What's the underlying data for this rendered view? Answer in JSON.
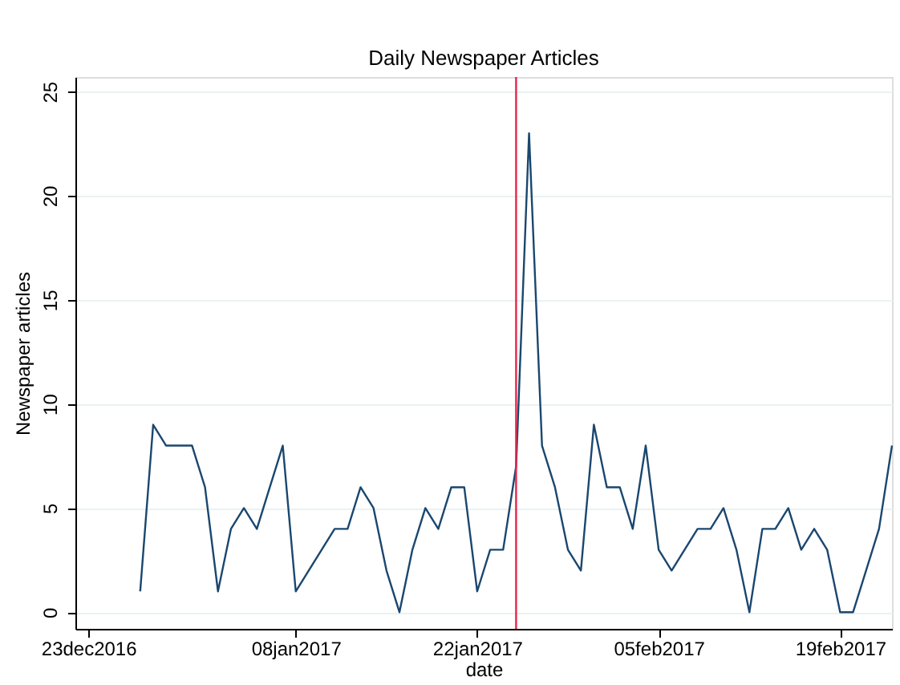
{
  "chart_data": {
    "type": "line",
    "title": "Daily Newspaper Articles",
    "xlabel": "date",
    "ylabel": "Newspaper articles",
    "x": [
      "2016-12-27",
      "2016-12-28",
      "2016-12-29",
      "2016-12-30",
      "2016-12-31",
      "2017-01-01",
      "2017-01-02",
      "2017-01-03",
      "2017-01-04",
      "2017-01-05",
      "2017-01-06",
      "2017-01-07",
      "2017-01-08",
      "2017-01-09",
      "2017-01-10",
      "2017-01-11",
      "2017-01-12",
      "2017-01-13",
      "2017-01-14",
      "2017-01-15",
      "2017-01-16",
      "2017-01-17",
      "2017-01-18",
      "2017-01-19",
      "2017-01-20",
      "2017-01-21",
      "2017-01-22",
      "2017-01-23",
      "2017-01-24",
      "2017-01-25",
      "2017-01-26",
      "2017-01-27",
      "2017-01-28",
      "2017-01-29",
      "2017-01-30",
      "2017-01-31",
      "2017-02-01",
      "2017-02-02",
      "2017-02-03",
      "2017-02-04",
      "2017-02-05",
      "2017-02-06",
      "2017-02-07",
      "2017-02-08",
      "2017-02-09",
      "2017-02-10",
      "2017-02-11",
      "2017-02-12",
      "2017-02-13",
      "2017-02-14",
      "2017-02-15",
      "2017-02-16",
      "2017-02-17",
      "2017-02-18",
      "2017-02-19",
      "2017-02-20",
      "2017-02-21",
      "2017-02-22",
      "2017-02-23"
    ],
    "series": [
      {
        "color": "#1a476f",
        "values": [
          1,
          9,
          8,
          8,
          8,
          6,
          1,
          4,
          5,
          4,
          6,
          8,
          1,
          2,
          3,
          4,
          4,
          6,
          5,
          2,
          0,
          3,
          5,
          4,
          6,
          6,
          1,
          3,
          3,
          7,
          23,
          8,
          6,
          3,
          2,
          9,
          6,
          6,
          4,
          8,
          3,
          2,
          3,
          4,
          4,
          5,
          3,
          0,
          4,
          4,
          5,
          3,
          4,
          3,
          0,
          0,
          2,
          4,
          8
        ]
      }
    ],
    "xlim": [
      "2016-12-22",
      "2017-02-23"
    ],
    "xticks": [
      {
        "value": "2016-12-23",
        "label": "23dec2016"
      },
      {
        "value": "2017-01-08",
        "label": "08jan2017"
      },
      {
        "value": "2017-01-22",
        "label": "22jan2017"
      },
      {
        "value": "2017-02-05",
        "label": "05feb2017"
      },
      {
        "value": "2017-02-19",
        "label": "19feb2017"
      }
    ],
    "ylim": [
      -0.8,
      25.7
    ],
    "yticks": [
      0,
      5,
      10,
      15,
      20,
      25
    ],
    "grid": "y",
    "line_style": "solid",
    "marker": "none",
    "ref_lines": [
      {
        "axis": "x",
        "value": "2017-01-25",
        "color": "#e8254a"
      }
    ]
  }
}
